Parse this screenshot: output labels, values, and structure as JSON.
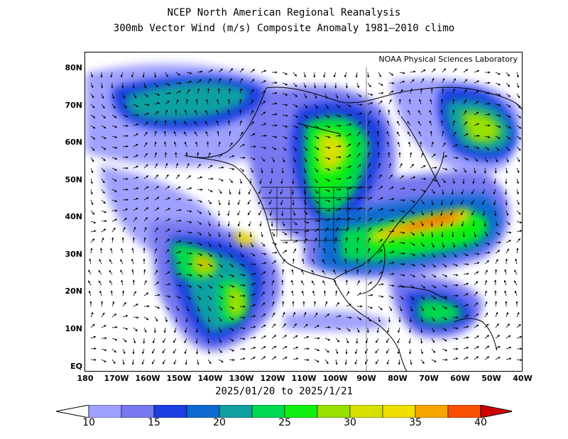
{
  "title_line1": "NCEP North American Regional Reanalysis",
  "title_line2": "300mb Vector Wind (m/s) Composite Anomaly 1981–2010 climo",
  "credit": "NOAA Physical Sciences Laboratory",
  "date_range": "2025/01/20 to 2025/1/21",
  "lat_labels": [
    "80N",
    "70N",
    "60N",
    "50N",
    "40N",
    "30N",
    "20N",
    "10N",
    "EQ"
  ],
  "lon_labels": [
    "180",
    "170W",
    "160W",
    "150W",
    "140W",
    "130W",
    "120W",
    "110W",
    "100W",
    "90W",
    "80W",
    "70W",
    "60W",
    "50W",
    "40W"
  ],
  "colorbar": {
    "tick_labels": [
      "10",
      "15",
      "20",
      "25",
      "30",
      "35",
      "40"
    ],
    "colors": [
      "#ffffff",
      "#a0a0ff",
      "#7878f0",
      "#1a3ee0",
      "#0c6ad0",
      "#10a0a0",
      "#00d850",
      "#10f010",
      "#98e000",
      "#d8e000",
      "#f0e000",
      "#f8a400",
      "#f85000",
      "#d00000"
    ]
  },
  "map_colors": {
    "land_outline": "#000000",
    "vector": "#000000"
  }
}
